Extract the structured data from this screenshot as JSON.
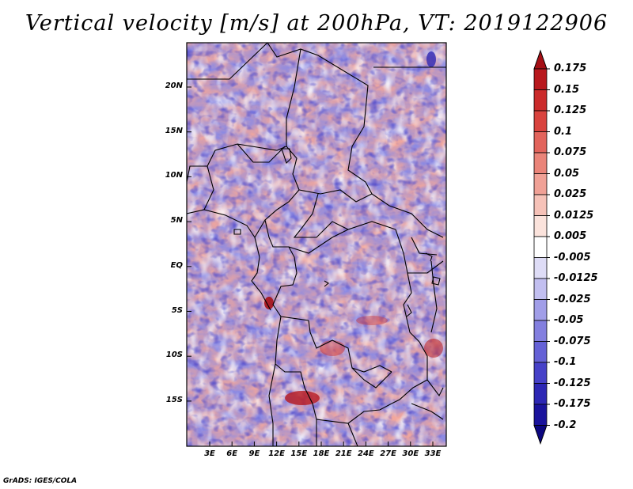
{
  "title": "Vertical velocity [m/s] at 200hPa, VT: 2019122906",
  "credit": "GrADS: IGES/COLA",
  "map": {
    "lon_range": [
      0,
      36
    ],
    "lat_range": [
      -20,
      25
    ],
    "lat_ticks": [
      "20N",
      "15N",
      "10N",
      "5N",
      "EQ",
      "5S",
      "10S",
      "15S"
    ],
    "lon_ticks": [
      "3E",
      "6E",
      "9E",
      "12E",
      "15E",
      "18E",
      "21E",
      "24E",
      "27E",
      "30E",
      "33E"
    ],
    "field": "vertical velocity (omega) at 200hPa"
  },
  "colorbar": {
    "labels": [
      "0.175",
      "0.15",
      "0.125",
      "0.1",
      "0.075",
      "0.05",
      "0.025",
      "0.0125",
      "0.005",
      "-0.005",
      "-0.0125",
      "-0.025",
      "-0.05",
      "-0.075",
      "-0.1",
      "-0.125",
      "-0.175",
      "-0.2"
    ],
    "colors": [
      "#a50f15",
      "#b8181d",
      "#cb2b2b",
      "#d9433e",
      "#e2645c",
      "#ea8479",
      "#f0a196",
      "#f6c2b8",
      "#fbe3dc",
      "#ffffff",
      "#dedcf6",
      "#c2bff0",
      "#a19ee8",
      "#837fdf",
      "#6561d6",
      "#4641c8",
      "#2d27b4",
      "#1a139c",
      "#0c0780"
    ]
  }
}
